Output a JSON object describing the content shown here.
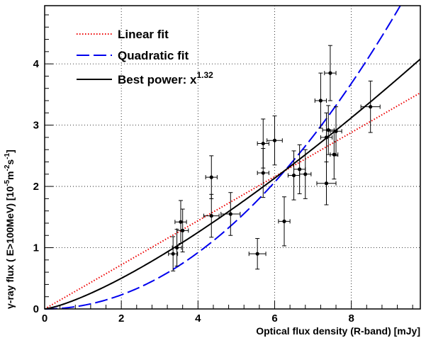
{
  "chart_data": {
    "type": "scatter",
    "xlabel": "Optical flux density (R-band) [mJy]",
    "ylabel_prefix": "γ-ray flux ( E>100MeV) [10",
    "ylabel_exp1": "-5",
    "ylabel_mid": "m",
    "ylabel_exp2": "-2",
    "ylabel_mid2": "s",
    "ylabel_exp3": "-1",
    "ylabel_suffix": "]",
    "xlim": [
      0,
      9.8
    ],
    "ylim": [
      0,
      4.95
    ],
    "xticks": [
      0,
      2,
      4,
      6,
      8
    ],
    "yticks": [
      0,
      1,
      2,
      3,
      4
    ],
    "grid": true,
    "legend_position": "top-left",
    "points": [
      {
        "x": 3.35,
        "y": 0.9,
        "xerr": 0.12,
        "yerr": 0.28
      },
      {
        "x": 3.45,
        "y": 1.0,
        "xerr": 0.12,
        "yerr": 0.3
      },
      {
        "x": 3.55,
        "y": 1.42,
        "xerr": 0.15,
        "yerr": 0.35
      },
      {
        "x": 3.6,
        "y": 1.28,
        "xerr": 0.15,
        "yerr": 0.35
      },
      {
        "x": 4.35,
        "y": 2.15,
        "xerr": 0.15,
        "yerr": 0.35
      },
      {
        "x": 4.35,
        "y": 1.52,
        "xerr": 0.2,
        "yerr": 0.35
      },
      {
        "x": 4.85,
        "y": 1.55,
        "xerr": 0.25,
        "yerr": 0.35
      },
      {
        "x": 5.55,
        "y": 0.9,
        "xerr": 0.22,
        "yerr": 0.25
      },
      {
        "x": 5.7,
        "y": 2.7,
        "xerr": 0.15,
        "yerr": 0.4
      },
      {
        "x": 5.7,
        "y": 2.22,
        "xerr": 0.15,
        "yerr": 0.4
      },
      {
        "x": 6.0,
        "y": 2.75,
        "xerr": 0.2,
        "yerr": 0.4
      },
      {
        "x": 6.25,
        "y": 1.43,
        "xerr": 0.15,
        "yerr": 0.4
      },
      {
        "x": 6.5,
        "y": 2.18,
        "xerr": 0.15,
        "yerr": 0.4
      },
      {
        "x": 6.65,
        "y": 2.28,
        "xerr": 0.15,
        "yerr": 0.4
      },
      {
        "x": 6.8,
        "y": 2.2,
        "xerr": 0.15,
        "yerr": 0.4
      },
      {
        "x": 7.2,
        "y": 3.4,
        "xerr": 0.15,
        "yerr": 0.45
      },
      {
        "x": 7.35,
        "y": 2.05,
        "xerr": 0.25,
        "yerr": 0.35
      },
      {
        "x": 7.35,
        "y": 2.8,
        "xerr": 0.15,
        "yerr": 0.4
      },
      {
        "x": 7.4,
        "y": 2.92,
        "xerr": 0.15,
        "yerr": 0.4
      },
      {
        "x": 7.45,
        "y": 3.85,
        "xerr": 0.15,
        "yerr": 0.45
      },
      {
        "x": 7.55,
        "y": 2.52,
        "xerr": 0.1,
        "yerr": 0.4
      },
      {
        "x": 7.6,
        "y": 2.9,
        "xerr": 0.15,
        "yerr": 0.4
      },
      {
        "x": 8.5,
        "y": 3.3,
        "xerr": 0.25,
        "yerr": 0.42
      }
    ],
    "series": [
      {
        "name": "Linear fit",
        "type": "linear",
        "a": 0.36,
        "color": "#ee0000",
        "style": "dotted"
      },
      {
        "name": "Quadratic fit",
        "type": "quadratic",
        "a": 0.0575,
        "color": "#0000ee",
        "style": "dashed"
      },
      {
        "name": "Best power: x",
        "name_exp": "1.32",
        "type": "power",
        "a": 0.2005,
        "b": 1.32,
        "color": "#000000",
        "style": "solid"
      }
    ]
  }
}
